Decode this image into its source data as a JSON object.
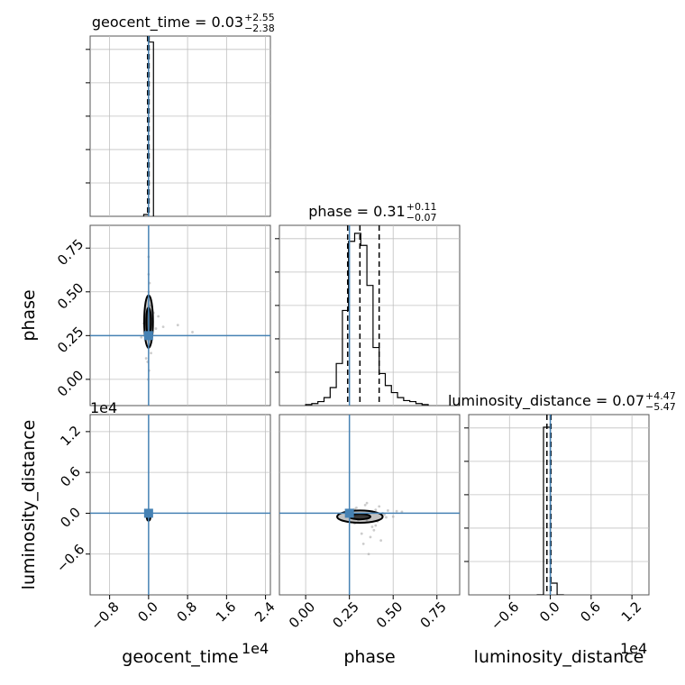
{
  "chart_data": {
    "type": "corner",
    "parameters": [
      "geocent_time",
      "phase",
      "luminosity_distance"
    ],
    "truths": {
      "geocent_time": 0,
      "phase": 0.25,
      "luminosity_distance": 0
    },
    "grid": true,
    "titles": [
      {
        "param": "geocent_time",
        "text": "geocent_time = 0.03",
        "plus": "+2.55",
        "minus": "−2.38"
      },
      {
        "param": "phase",
        "text": "phase = 0.31",
        "plus": "+0.11",
        "minus": "−0.07"
      },
      {
        "param": "luminosity_distance",
        "text": "luminosity_distance = 0.07",
        "plus": "+4.47",
        "minus": "−5.47"
      }
    ],
    "axes": {
      "geocent_time": {
        "range": [
          -1.2,
          2.5
        ],
        "scale_label": "1e4",
        "ticks": [
          -0.8,
          0.0,
          0.8,
          1.6,
          2.4
        ],
        "tick_labels": [
          "−0.8",
          "0.0",
          "0.8",
          "1.6",
          "2.4"
        ]
      },
      "phase": {
        "range": [
          -0.15,
          0.88
        ],
        "ticks": [
          0.0,
          0.25,
          0.5,
          0.75
        ],
        "tick_labels": [
          "0.00",
          "0.25",
          "0.50",
          "0.75"
        ]
      },
      "luminosity_distance": {
        "range": [
          -1.2,
          1.45
        ],
        "scale_label": "1e4",
        "ticks": [
          -0.6,
          0.0,
          0.6,
          1.2
        ],
        "tick_labels": [
          "−0.6",
          "0.0",
          "0.6",
          "1.2"
        ]
      }
    },
    "histograms": {
      "geocent_time": {
        "bin_edges": [
          -0.1,
          0.0,
          0.1
        ],
        "counts": [
          3,
          290
        ],
        "ymax": 300,
        "quantiles": [
          -0.02,
          0.0,
          0.01
        ]
      },
      "phase": {
        "bin_edges": [
          0.0,
          0.035,
          0.07,
          0.105,
          0.14,
          0.175,
          0.21,
          0.245,
          0.28,
          0.315,
          0.35,
          0.385,
          0.42,
          0.455,
          0.49,
          0.525,
          0.56,
          0.595,
          0.63,
          0.665,
          0.7
        ],
        "counts": [
          1,
          2,
          4,
          8,
          18,
          42,
          95,
          164,
          172,
          160,
          120,
          58,
          32,
          20,
          13,
          8,
          5,
          4,
          2,
          1
        ],
        "ymax": 180,
        "quantiles": [
          0.24,
          0.31,
          0.42
        ]
      },
      "luminosity_distance": {
        "bin_edges": [
          -0.2,
          -0.1,
          0.0,
          0.1,
          0.2
        ],
        "counts": [
          0,
          200,
          14,
          0
        ],
        "ymax": 215,
        "quantiles": [
          -0.05,
          0.0,
          0.01
        ]
      }
    },
    "scatter_2d": {
      "phase_vs_geocent_time": {
        "x_param": "geocent_time",
        "y_param": "phase",
        "points_x": [
          0.01,
          -0.01,
          0.02,
          -0.02,
          0.0,
          0.03,
          -0.03,
          0.01,
          0.02,
          -0.01,
          0.0,
          0.04,
          -0.04,
          0.15,
          -0.15,
          0.2,
          0.05,
          -0.05,
          0.1,
          0.3,
          0.6,
          0.9,
          -0.1,
          0.0,
          0.01,
          -0.02,
          0.03,
          0.0,
          -0.01,
          0.02
        ],
        "points_y": [
          0.3,
          0.28,
          0.33,
          0.35,
          0.25,
          0.22,
          0.4,
          0.45,
          0.2,
          0.18,
          0.5,
          0.27,
          0.31,
          0.29,
          0.24,
          0.36,
          0.15,
          0.12,
          0.38,
          0.3,
          0.31,
          0.27,
          0.32,
          0.6,
          0.05,
          0.1,
          0.42,
          0.7,
          0.0,
          0.55
        ],
        "contours": [
          {
            "cx": 0.0,
            "cy": 0.33,
            "rx": 0.09,
            "ry": 0.15
          },
          {
            "cx": 0.0,
            "cy": 0.33,
            "rx": 0.05,
            "ry": 0.08
          }
        ]
      },
      "luminosity_distance_vs_geocent_time": {
        "x_param": "geocent_time",
        "y_param": "luminosity_distance",
        "points_x": [
          0.0,
          0.01,
          -0.01,
          0.02,
          -0.02,
          0.0,
          0.01,
          0.0
        ],
        "points_y": [
          -0.05,
          -0.02,
          -0.08,
          0.0,
          -0.1,
          -0.04,
          -0.06,
          0.02
        ],
        "contours": [
          {
            "cx": 0.0,
            "cy": -0.05,
            "rx": 0.04,
            "ry": 0.06
          }
        ]
      },
      "luminosity_distance_vs_phase": {
        "x_param": "phase",
        "y_param": "luminosity_distance",
        "points_x": [
          0.3,
          0.35,
          0.4,
          0.45,
          0.25,
          0.28,
          0.32,
          0.38,
          0.42,
          0.5,
          0.55,
          0.33,
          0.36,
          0.29,
          0.31,
          0.41,
          0.47,
          0.27,
          0.34,
          0.39,
          0.44,
          0.37,
          0.3,
          0.46,
          0.52,
          0.35,
          0.4,
          0.33,
          0.28,
          0.43
        ],
        "points_y": [
          -0.05,
          -0.1,
          0.05,
          -0.02,
          0.0,
          -0.15,
          -0.3,
          -0.2,
          0.1,
          -0.05,
          0.02,
          -0.45,
          -0.6,
          0.08,
          -0.08,
          -0.12,
          0.04,
          -0.04,
          0.12,
          -0.25,
          0.0,
          -0.35,
          -0.1,
          -0.06,
          0.03,
          0.15,
          -0.18,
          -0.02,
          0.06,
          -0.4
        ],
        "contours": [
          {
            "cx": 0.31,
            "cy": -0.05,
            "rx": 0.13,
            "ry": 0.09
          },
          {
            "cx": 0.31,
            "cy": -0.05,
            "rx": 0.06,
            "ry": 0.04
          }
        ]
      }
    },
    "colors": {
      "truth": "#4682b4",
      "hist": "#000000",
      "grid": "#c0c0c0",
      "points": "#aaaaaa"
    }
  }
}
